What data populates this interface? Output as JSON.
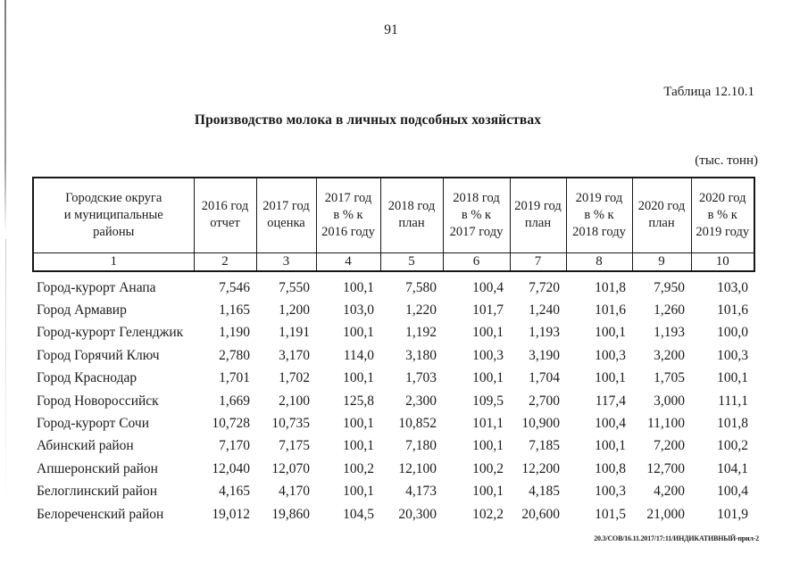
{
  "page": {
    "number": "91",
    "table_label": "Таблица 12.10.1",
    "title": "Производство молока в личных подсобных хозяйствах",
    "units": "(тыс. тонн)",
    "footer": "20.3/СОВ/16.11.2017/17:11/ИНДИКАТИВНЫЙ-прил-2"
  },
  "table": {
    "columns": [
      {
        "header": "Городские округа\nи муниципальные\nрайоны",
        "num": "1"
      },
      {
        "header": "2016 год\nотчет",
        "num": "2"
      },
      {
        "header": "2017 год\nоценка",
        "num": "3"
      },
      {
        "header": "2017 год\nв % к\n2016 году",
        "num": "4"
      },
      {
        "header": "2018 год\nплан",
        "num": "5"
      },
      {
        "header": "2018 год\nв % к\n2017 году",
        "num": "6"
      },
      {
        "header": "2019 год\nплан",
        "num": "7"
      },
      {
        "header": "2019 год\nв % к\n2018 году",
        "num": "8"
      },
      {
        "header": "2020 год\nплан",
        "num": "9"
      },
      {
        "header": "2020 год\nв % к\n2019 году",
        "num": "10"
      }
    ],
    "rows": [
      {
        "name": "Город-курорт Анапа",
        "values": [
          "7,546",
          "7,550",
          "100,1",
          "7,580",
          "100,4",
          "7,720",
          "101,8",
          "7,950",
          "103,0"
        ]
      },
      {
        "name": "Город Армавир",
        "values": [
          "1,165",
          "1,200",
          "103,0",
          "1,220",
          "101,7",
          "1,240",
          "101,6",
          "1,260",
          "101,6"
        ]
      },
      {
        "name": "Город-курорт Геленджик",
        "values": [
          "1,190",
          "1,191",
          "100,1",
          "1,192",
          "100,1",
          "1,193",
          "100,1",
          "1,193",
          "100,0"
        ]
      },
      {
        "name": "Город Горячий Ключ",
        "values": [
          "2,780",
          "3,170",
          "114,0",
          "3,180",
          "100,3",
          "3,190",
          "100,3",
          "3,200",
          "100,3"
        ]
      },
      {
        "name": "Город Краснодар",
        "values": [
          "1,701",
          "1,702",
          "100,1",
          "1,703",
          "100,1",
          "1,704",
          "100,1",
          "1,705",
          "100,1"
        ]
      },
      {
        "name": "Город Новороссийск",
        "values": [
          "1,669",
          "2,100",
          "125,8",
          "2,300",
          "109,5",
          "2,700",
          "117,4",
          "3,000",
          "111,1"
        ]
      },
      {
        "name": "Город-курорт Сочи",
        "values": [
          "10,728",
          "10,735",
          "100,1",
          "10,852",
          "101,1",
          "10,900",
          "100,4",
          "11,100",
          "101,8"
        ]
      },
      {
        "name": "Абинский район",
        "values": [
          "7,170",
          "7,175",
          "100,1",
          "7,180",
          "100,1",
          "7,185",
          "100,1",
          "7,200",
          "100,2"
        ]
      },
      {
        "name": "Апшеронский район",
        "values": [
          "12,040",
          "12,070",
          "100,2",
          "12,100",
          "100,2",
          "12,200",
          "100,8",
          "12,700",
          "104,1"
        ]
      },
      {
        "name": "Белоглинский район",
        "values": [
          "4,165",
          "4,170",
          "100,1",
          "4,173",
          "100,1",
          "4,185",
          "100,3",
          "4,200",
          "100,4"
        ]
      },
      {
        "name": "Белореченский район",
        "values": [
          "19,012",
          "19,860",
          "104,5",
          "20,300",
          "102,2",
          "20,600",
          "101,5",
          "21,000",
          "101,9"
        ]
      }
    ]
  }
}
